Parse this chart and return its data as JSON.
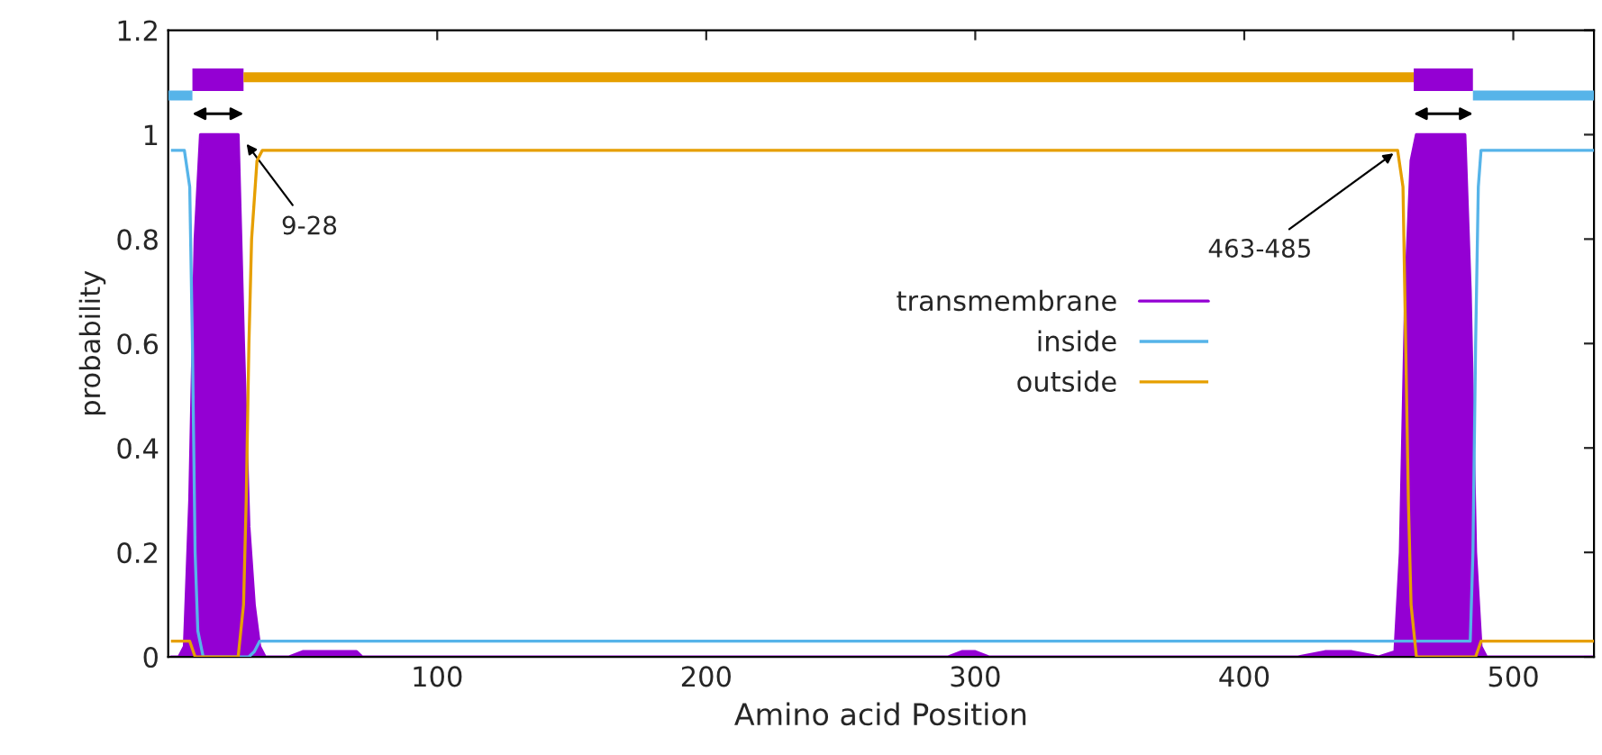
{
  "chart_data": {
    "type": "line",
    "xlabel": "Amino acid Position",
    "ylabel": "probability",
    "xlim": [
      0,
      530
    ],
    "xticks": [
      100,
      200,
      300,
      400,
      500
    ],
    "ylim": [
      0,
      1.2
    ],
    "yticks": [
      0,
      0.2,
      0.4,
      0.6,
      0.8,
      1,
      1.2
    ],
    "grid": false,
    "legend": "center",
    "series": [
      {
        "name": "transmembrane",
        "type": "area",
        "color": "#9400d3",
        "x": [
          1,
          4,
          6,
          8,
          10,
          12,
          26,
          28,
          30,
          32,
          34,
          36,
          45,
          50,
          60,
          70,
          72,
          80,
          290,
          295,
          300,
          305,
          420,
          430,
          440,
          450,
          456,
          458,
          460,
          462,
          464,
          482,
          484,
          486,
          488,
          490,
          530
        ],
        "values": [
          0,
          0,
          0.02,
          0.3,
          0.8,
          1,
          1,
          0.6,
          0.25,
          0.1,
          0.02,
          0,
          0,
          0.01,
          0.01,
          0.01,
          0,
          0,
          0,
          0.01,
          0.01,
          0,
          0,
          0.01,
          0.01,
          0,
          0.01,
          0.2,
          0.7,
          0.95,
          1,
          1,
          0.7,
          0.2,
          0.02,
          0,
          0
        ]
      },
      {
        "name": "inside",
        "color": "#56b4e9",
        "x": [
          1,
          6,
          8,
          9,
          10,
          11,
          13,
          30,
          32,
          34,
          36,
          456,
          484,
          485,
          486,
          487,
          488,
          530
        ],
        "values": [
          0.97,
          0.97,
          0.9,
          0.6,
          0.2,
          0.05,
          0,
          0,
          0.01,
          0.03,
          0.03,
          0.03,
          0.03,
          0.2,
          0.6,
          0.9,
          0.97,
          0.97
        ]
      },
      {
        "name": "outside",
        "color": "#e69f00",
        "x": [
          1,
          8,
          10,
          26,
          28,
          29,
          30,
          31,
          33,
          35,
          457,
          459,
          460,
          461,
          462,
          464,
          486,
          488,
          530
        ],
        "values": [
          0.03,
          0.03,
          0,
          0,
          0.1,
          0.3,
          0.6,
          0.8,
          0.95,
          0.97,
          0.97,
          0.9,
          0.6,
          0.3,
          0.1,
          0,
          0,
          0.03,
          0.03
        ]
      },
      {
        "color": "#56b4e9",
        "x": [
          0,
          9
        ],
        "values": [
          1.075,
          1.075
        ]
      },
      {
        "color": "#9400d3",
        "x": [
          9,
          28
        ],
        "values": [
          1.105,
          1.105
        ]
      },
      {
        "color": "#e69f00",
        "x": [
          28,
          463
        ],
        "values": [
          1.11,
          1.11
        ]
      },
      {
        "color": "#9400d3",
        "x": [
          463,
          485
        ],
        "values": [
          1.105,
          1.105
        ]
      },
      {
        "color": "#56b4e9",
        "x": [
          485,
          530
        ],
        "values": [
          1.075,
          1.075
        ]
      }
    ],
    "annotations": [
      {
        "text": "9-28",
        "x": 28,
        "y": 0.99
      },
      {
        "text": "463-485",
        "x": 457,
        "y": 0.97
      }
    ]
  }
}
